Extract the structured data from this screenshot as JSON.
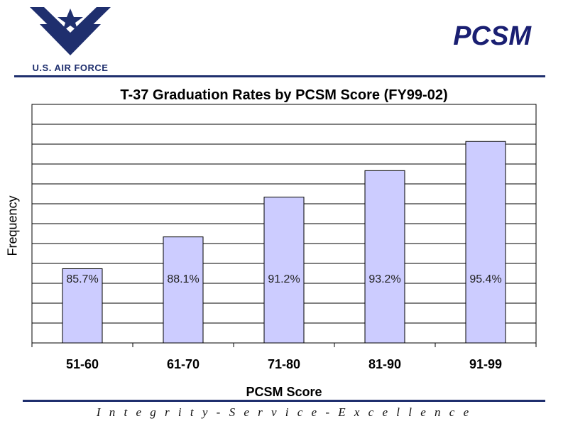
{
  "header": {
    "logo_text": "U.S. AIR FORCE",
    "title": "PCSM"
  },
  "footer": {
    "motto": "I n t e g r i t y  -  S e r v i c e  -  E x c e l l e n c e"
  },
  "colors": {
    "brand_navy": "#1f2f6e",
    "title_navy": "#1a1f72",
    "bar_fill": "#ccccff",
    "bar_stroke": "#000000"
  },
  "chart_data": {
    "type": "bar",
    "title": "T-37 Graduation Rates by PCSM Score (FY99-02)",
    "xlabel": "PCSM Score",
    "ylabel": "Frequency",
    "categories": [
      "51-60",
      "61-70",
      "71-80",
      "81-90",
      "91-99"
    ],
    "values": [
      28,
      40,
      55,
      65,
      76
    ],
    "data_labels": [
      "85.7%",
      "88.1%",
      "91.2%",
      "93.2%",
      "95.4%"
    ],
    "ylim": [
      0,
      90
    ],
    "y_gridlines": 12,
    "y_tick_labels_shown": false,
    "grid": true,
    "legend": "none"
  }
}
